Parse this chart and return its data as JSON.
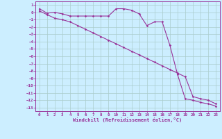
{
  "xlabel": "Windchill (Refroidissement éolien,°C)",
  "background_color": "#cceeff",
  "grid_color": "#aacccc",
  "line_color": "#993399",
  "xlim": [
    -0.5,
    23.5
  ],
  "ylim": [
    -13.5,
    1.5
  ],
  "xticks": [
    0,
    1,
    2,
    3,
    4,
    5,
    6,
    7,
    8,
    9,
    10,
    11,
    12,
    13,
    14,
    15,
    16,
    17,
    18,
    19,
    20,
    21,
    22,
    23
  ],
  "yticks": [
    1,
    0,
    -1,
    -2,
    -3,
    -4,
    -5,
    -6,
    -7,
    -8,
    -9,
    -10,
    -11,
    -12,
    -13
  ],
  "series1_x": [
    0,
    1,
    2,
    3,
    4,
    5,
    6,
    7,
    8,
    9,
    10,
    11,
    12,
    13,
    14,
    15,
    16,
    17,
    18,
    19,
    20,
    21,
    22,
    23
  ],
  "series1_y": [
    0.5,
    -0.1,
    0,
    -0.2,
    -0.5,
    -0.5,
    -0.5,
    -0.5,
    -0.5,
    -0.5,
    0.5,
    0.5,
    0.3,
    -0.2,
    -1.8,
    -1.3,
    -1.3,
    -4.5,
    -8.5,
    -11.8,
    -12.0,
    -12.3,
    -12.5,
    -12.8
  ],
  "series2_x": [
    0,
    1,
    2,
    3,
    4,
    5,
    6,
    7,
    8,
    9,
    10,
    11,
    12,
    13,
    14,
    15,
    16,
    17,
    18,
    19,
    20,
    21,
    22,
    23
  ],
  "series2_y": [
    0.2,
    -0.3,
    -0.8,
    -1.0,
    -1.3,
    -1.8,
    -2.3,
    -2.8,
    -3.3,
    -3.8,
    -4.3,
    -4.8,
    -5.3,
    -5.8,
    -6.3,
    -6.8,
    -7.3,
    -7.8,
    -8.3,
    -8.8,
    -11.5,
    -11.8,
    -12.0,
    -12.5
  ]
}
